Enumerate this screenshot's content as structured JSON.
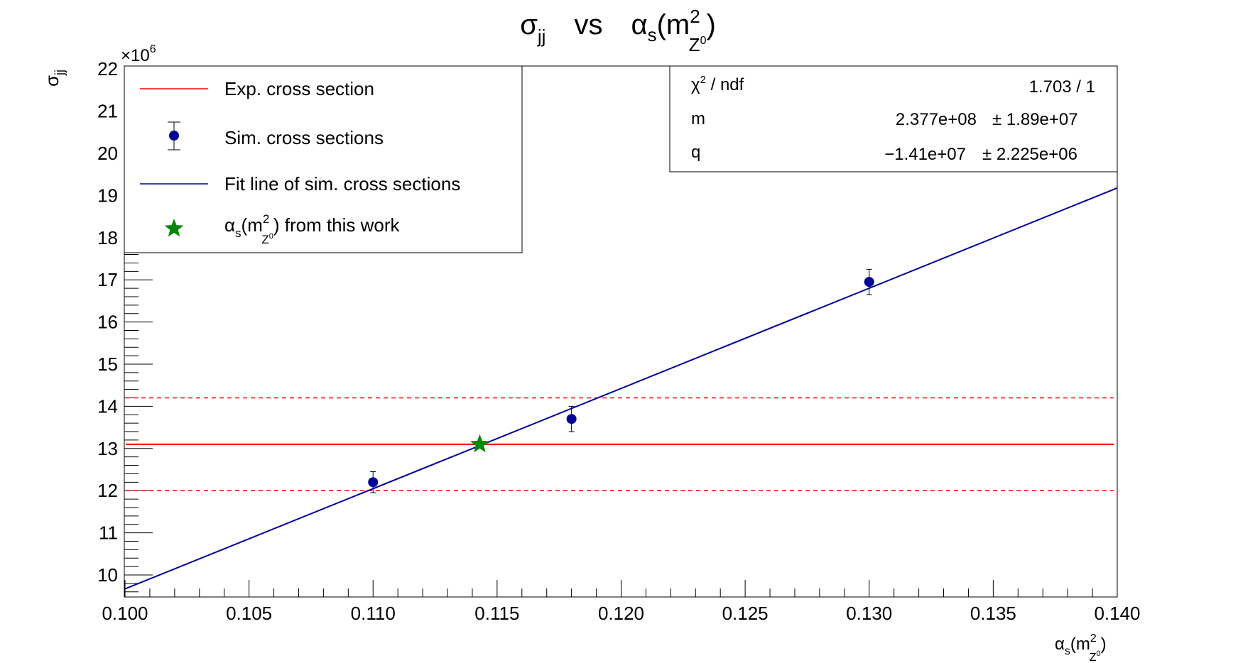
{
  "chart_data": {
    "type": "scatter",
    "title": {
      "base": "σ",
      "sub": "jj",
      "vs": "vs",
      "alpha": "α",
      "alpha_sub": "s",
      "open": "(m",
      "sq": "2",
      "z": "Z",
      "z0": "0",
      "close": ")"
    },
    "ylabel": {
      "base": "σ",
      "sub": "jj"
    },
    "xlabel": {
      "alpha": "α",
      "alpha_sub": "s",
      "open": "(m",
      "sq": "2",
      "z": "Z",
      "z0": "0",
      "close": ")"
    },
    "y_multiplier": {
      "times": "×10",
      "exp": "6"
    },
    "xlim": [
      0.1,
      0.14
    ],
    "ylim": [
      9.4,
      22
    ],
    "x_ticks": [
      "0.100",
      "0.105",
      "0.110",
      "0.115",
      "0.120",
      "0.125",
      "0.130",
      "0.135",
      "0.140"
    ],
    "x_tick_values": [
      0.1,
      0.105,
      0.11,
      0.115,
      0.12,
      0.125,
      0.13,
      0.135,
      0.14
    ],
    "y_ticks": [
      "10",
      "11",
      "12",
      "13",
      "14",
      "15",
      "16",
      "17",
      "18",
      "19",
      "20",
      "21",
      "22"
    ],
    "y_tick_values": [
      10,
      11,
      12,
      13,
      14,
      15,
      16,
      17,
      18,
      19,
      20,
      21,
      22
    ],
    "exp_cross_section": {
      "value": 13.1,
      "low": 12.0,
      "high": 14.2,
      "color": "#ff0000"
    },
    "sim_points": {
      "x": [
        0.11,
        0.118,
        0.13
      ],
      "y": [
        12.2,
        13.7,
        16.95
      ],
      "yerr": [
        0.25,
        0.3,
        0.3
      ],
      "color": "#000099"
    },
    "fit_line": {
      "slope": 237.7,
      "intercept": -14.1,
      "x_range": [
        0.1,
        0.14
      ],
      "color": "#000099"
    },
    "alpha_point": {
      "x": 0.1143,
      "y": 13.1,
      "color": "#008800"
    },
    "legend": {
      "items": [
        {
          "label": "Exp. cross section"
        },
        {
          "label": "Sim. cross sections"
        },
        {
          "label": "Fit line of sim. cross sections"
        },
        {
          "label_main": "α",
          "label_s": "s",
          "label_open": "(m",
          "label_sq": "2",
          "label_z": "Z",
          "label_z0": "0",
          "label_rest": ") from this work"
        }
      ]
    },
    "stats": {
      "rows": [
        {
          "name": "χ",
          "name_sup": "2",
          "name_rest": " / ndf",
          "value": "1.703 / 1",
          "error": ""
        },
        {
          "name": "m",
          "name_sup": "",
          "name_rest": "",
          "value": "2.377e+08",
          "error": "± 1.89e+07"
        },
        {
          "name": "q",
          "name_sup": "",
          "name_rest": "",
          "value": "−1.41e+07",
          "error": "± 2.225e+06"
        }
      ]
    }
  }
}
